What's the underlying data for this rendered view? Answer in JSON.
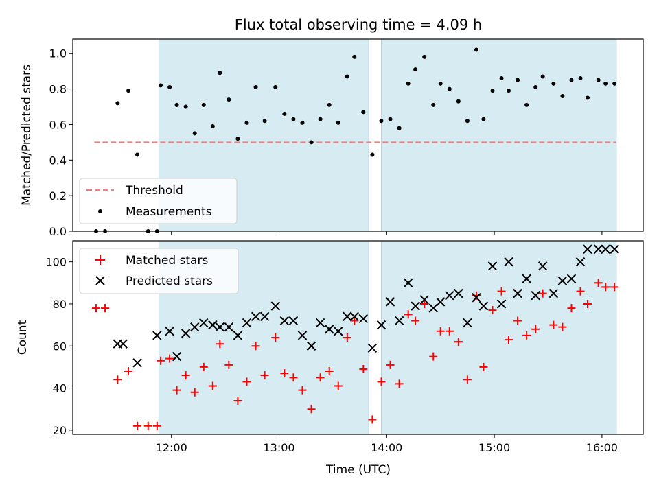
{
  "title": "Flux total observing time = 4.09 h",
  "xlabel": "Time (UTC)",
  "x_ticks": [
    "12:00",
    "13:00",
    "14:00",
    "15:00",
    "16:00"
  ],
  "colors": {
    "threshold": "#f08080",
    "shade": "#add8e6",
    "measurements": "#000000",
    "matched": "#ff0000",
    "predicted": "#000000"
  },
  "chart_data": [
    {
      "type": "scatter",
      "ylabel": "Matched/Predicted stars",
      "ylim": [
        0,
        1.08
      ],
      "y_ticks": [
        "0.0",
        "0.2",
        "0.4",
        "0.6",
        "0.8",
        "1.0"
      ],
      "threshold": {
        "name": "Threshold",
        "value": 0.5,
        "x_range": [
          "11:17",
          "16:08"
        ]
      },
      "observing_windows": [
        [
          "11:53",
          "13:50"
        ],
        [
          "13:57",
          "16:08"
        ]
      ],
      "legend": [
        "Threshold",
        "Measurements"
      ],
      "legend_position": "lower left",
      "series": [
        {
          "name": "Measurements",
          "x": [
            "11:18",
            "11:23",
            "11:30",
            "11:36",
            "11:41",
            "11:47",
            "11:52",
            "11:54",
            "11:59",
            "12:03",
            "12:08",
            "12:13",
            "12:18",
            "12:23",
            "12:27",
            "12:32",
            "12:37",
            "12:42",
            "12:47",
            "12:52",
            "12:58",
            "13:03",
            "13:08",
            "13:13",
            "13:18",
            "13:23",
            "13:28",
            "13:33",
            "13:38",
            "13:42",
            "13:47",
            "13:52",
            "13:57",
            "14:02",
            "14:07",
            "14:12",
            "14:16",
            "14:21",
            "14:26",
            "14:30",
            "14:35",
            "14:40",
            "14:45",
            "14:50",
            "14:54",
            "14:59",
            "15:04",
            "15:08",
            "15:13",
            "15:18",
            "15:23",
            "15:27",
            "15:33",
            "15:38",
            "15:43",
            "15:48",
            "15:52",
            "15:58",
            "16:02",
            "16:07"
          ],
          "y": [
            0.0,
            0.0,
            0.72,
            0.79,
            0.43,
            0.0,
            0.0,
            0.82,
            0.81,
            0.71,
            0.7,
            0.55,
            0.71,
            0.59,
            0.89,
            0.74,
            0.52,
            0.61,
            0.81,
            0.62,
            0.81,
            0.66,
            0.63,
            0.61,
            0.5,
            0.63,
            0.71,
            0.61,
            0.87,
            0.98,
            0.67,
            0.43,
            0.62,
            0.63,
            0.58,
            0.83,
            0.91,
            0.98,
            0.71,
            0.83,
            0.8,
            0.73,
            0.62,
            1.02,
            0.63,
            0.79,
            0.86,
            0.79,
            0.85,
            0.71,
            0.81,
            0.87,
            0.83,
            0.76,
            0.85,
            0.86,
            0.75,
            0.85,
            0.83,
            0.83
          ]
        }
      ]
    },
    {
      "type": "scatter",
      "ylabel": "Count",
      "ylim": [
        18,
        110
      ],
      "y_ticks": [
        "20",
        "40",
        "60",
        "80",
        "100"
      ],
      "observing_windows": [
        [
          "11:53",
          "13:50"
        ],
        [
          "13:57",
          "16:08"
        ]
      ],
      "legend": [
        "Matched stars",
        "Predicted stars"
      ],
      "legend_position": "upper left",
      "series": [
        {
          "name": "Matched stars",
          "x": [
            "11:18",
            "11:23",
            "11:30",
            "11:36",
            "11:41",
            "11:47",
            "11:52",
            "11:54",
            "11:59",
            "12:03",
            "12:08",
            "12:13",
            "12:18",
            "12:23",
            "12:27",
            "12:32",
            "12:37",
            "12:42",
            "12:47",
            "12:52",
            "12:58",
            "13:03",
            "13:08",
            "13:13",
            "13:18",
            "13:23",
            "13:28",
            "13:33",
            "13:38",
            "13:42",
            "13:47",
            "13:52",
            "13:57",
            "14:02",
            "14:07",
            "14:12",
            "14:16",
            "14:21",
            "14:26",
            "14:30",
            "14:35",
            "14:40",
            "14:45",
            "14:50",
            "14:54",
            "14:59",
            "15:04",
            "15:08",
            "15:13",
            "15:18",
            "15:23",
            "15:27",
            "15:33",
            "15:38",
            "15:43",
            "15:48",
            "15:52",
            "15:58",
            "16:02",
            "16:07"
          ],
          "y": [
            78,
            78,
            44,
            48,
            22,
            22,
            22,
            53,
            54,
            39,
            46,
            38,
            50,
            41,
            61,
            51,
            34,
            43,
            60,
            46,
            64,
            47,
            45,
            39,
            30,
            45,
            48,
            41,
            64,
            72,
            49,
            25,
            43,
            51,
            42,
            75,
            72,
            80,
            55,
            67,
            67,
            62,
            44,
            84,
            50,
            77,
            86,
            63,
            72,
            65,
            68,
            85,
            70,
            69,
            78,
            86,
            80,
            90,
            88,
            88
          ]
        },
        {
          "name": "Predicted stars",
          "x": [
            "11:30",
            "11:33",
            "11:41",
            "11:52",
            "11:59",
            "12:03",
            "12:08",
            "12:13",
            "12:18",
            "12:23",
            "12:27",
            "12:32",
            "12:37",
            "12:42",
            "12:47",
            "12:52",
            "12:58",
            "13:03",
            "13:08",
            "13:13",
            "13:18",
            "13:23",
            "13:28",
            "13:33",
            "13:38",
            "13:42",
            "13:47",
            "13:52",
            "13:57",
            "14:02",
            "14:07",
            "14:12",
            "14:16",
            "14:21",
            "14:26",
            "14:30",
            "14:35",
            "14:40",
            "14:45",
            "14:50",
            "14:54",
            "14:59",
            "15:04",
            "15:08",
            "15:13",
            "15:18",
            "15:23",
            "15:27",
            "15:33",
            "15:38",
            "15:43",
            "15:48",
            "15:52",
            "15:58",
            "16:02",
            "16:07"
          ],
          "y": [
            61,
            61,
            52,
            65,
            67,
            55,
            66,
            69,
            71,
            70,
            69,
            69,
            65,
            71,
            74,
            74,
            79,
            72,
            72,
            65,
            60,
            71,
            68,
            67,
            74,
            74,
            73,
            59,
            70,
            81,
            72,
            90,
            79,
            82,
            78,
            81,
            84,
            85,
            71,
            83,
            79,
            98,
            80,
            100,
            85,
            92,
            84,
            98,
            85,
            91,
            92,
            100,
            106,
            106,
            106,
            106
          ]
        }
      ]
    }
  ]
}
